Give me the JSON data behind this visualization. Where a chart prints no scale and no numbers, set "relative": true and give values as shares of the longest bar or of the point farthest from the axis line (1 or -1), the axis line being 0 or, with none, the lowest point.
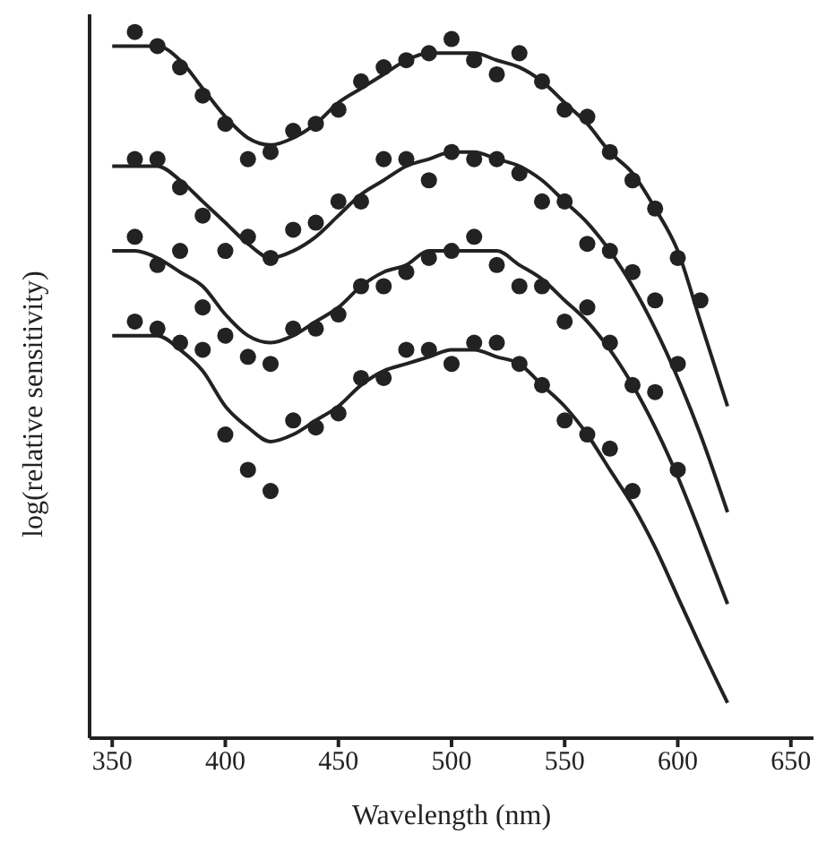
{
  "chart_data": {
    "type": "scatter",
    "xlabel": "Wavelength (nm)",
    "ylabel": "log(relative sensitivity)",
    "relative": true,
    "xlim": [
      340,
      660
    ],
    "xticks": [
      350,
      400,
      450,
      500,
      550,
      600,
      650
    ],
    "grid": false,
    "marker": "circle",
    "series": [
      {
        "color": "#222222",
        "x": [
          360,
          370,
          380,
          390,
          400,
          410,
          420,
          430,
          440,
          450,
          460,
          470,
          480,
          490,
          500,
          510,
          520,
          530,
          540,
          550,
          560,
          570,
          580,
          590,
          600,
          610
        ],
        "values": [
          1.0,
          0.98,
          0.95,
          0.91,
          0.87,
          0.82,
          0.83,
          0.86,
          0.87,
          0.89,
          0.93,
          0.95,
          0.96,
          0.97,
          0.99,
          0.96,
          0.94,
          0.97,
          0.93,
          0.89,
          0.88,
          0.83,
          0.79,
          0.75,
          0.68,
          0.62
        ]
      },
      {
        "color": "#222222",
        "x": [
          360,
          370,
          380,
          390,
          400,
          410,
          420,
          430,
          440,
          450,
          460,
          470,
          480,
          490,
          500,
          510,
          520,
          530,
          540,
          550,
          560,
          570,
          580,
          590,
          600
        ],
        "values": [
          0.82,
          0.82,
          0.78,
          0.74,
          0.69,
          0.71,
          0.68,
          0.72,
          0.73,
          0.76,
          0.76,
          0.82,
          0.82,
          0.79,
          0.83,
          0.82,
          0.82,
          0.8,
          0.76,
          0.76,
          0.7,
          0.69,
          0.66,
          0.62,
          0.53
        ]
      },
      {
        "color": "#222222",
        "x": [
          360,
          370,
          380,
          390,
          400,
          410,
          420,
          430,
          440,
          450,
          460,
          470,
          480,
          490,
          500,
          510,
          520,
          530,
          540,
          550,
          560,
          570,
          580,
          590,
          600
        ],
        "values": [
          0.71,
          0.67,
          0.69,
          0.61,
          0.57,
          0.54,
          0.53,
          0.58,
          0.58,
          0.6,
          0.64,
          0.64,
          0.66,
          0.68,
          0.69,
          0.71,
          0.67,
          0.64,
          0.64,
          0.59,
          0.61,
          0.56,
          0.5,
          0.49,
          0.38
        ]
      },
      {
        "color": "#222222",
        "x": [
          360,
          370,
          380,
          390,
          400,
          410,
          420,
          430,
          440,
          450,
          460,
          470,
          480,
          490,
          500,
          510,
          520,
          530,
          540,
          550,
          560,
          570,
          580
        ],
        "values": [
          0.59,
          0.58,
          0.56,
          0.55,
          0.43,
          0.38,
          0.35,
          0.45,
          0.44,
          0.46,
          0.51,
          0.51,
          0.55,
          0.55,
          0.53,
          0.56,
          0.56,
          0.53,
          0.5,
          0.45,
          0.43,
          0.41,
          0.35
        ]
      },
      {
        "type": "line",
        "marker": "none",
        "color": "#222222",
        "x": [
          350,
          360,
          370,
          380,
          390,
          400,
          410,
          420,
          430,
          440,
          450,
          460,
          470,
          480,
          490,
          500,
          510,
          520,
          530,
          540,
          550,
          560,
          570,
          580,
          590,
          600,
          610,
          622
        ],
        "values": [
          0.98,
          0.98,
          0.98,
          0.96,
          0.92,
          0.88,
          0.85,
          0.84,
          0.85,
          0.87,
          0.9,
          0.92,
          0.94,
          0.96,
          0.97,
          0.97,
          0.97,
          0.96,
          0.95,
          0.93,
          0.9,
          0.87,
          0.83,
          0.8,
          0.75,
          0.69,
          0.59,
          0.47
        ]
      },
      {
        "type": "line",
        "marker": "none",
        "color": "#222222",
        "x": [
          350,
          360,
          370,
          380,
          390,
          400,
          410,
          420,
          430,
          440,
          450,
          460,
          470,
          480,
          490,
          500,
          510,
          520,
          530,
          540,
          550,
          560,
          570,
          580,
          590,
          600,
          610,
          622
        ],
        "values": [
          0.81,
          0.81,
          0.81,
          0.79,
          0.76,
          0.73,
          0.7,
          0.68,
          0.69,
          0.71,
          0.74,
          0.77,
          0.79,
          0.81,
          0.82,
          0.83,
          0.83,
          0.82,
          0.81,
          0.79,
          0.76,
          0.73,
          0.69,
          0.64,
          0.58,
          0.51,
          0.43,
          0.32
        ]
      },
      {
        "type": "line",
        "marker": "none",
        "color": "#222222",
        "x": [
          350,
          360,
          370,
          380,
          390,
          400,
          410,
          420,
          430,
          440,
          450,
          460,
          470,
          480,
          490,
          500,
          510,
          520,
          530,
          540,
          550,
          560,
          570,
          580,
          590,
          600,
          610,
          622
        ],
        "values": [
          0.69,
          0.69,
          0.68,
          0.66,
          0.64,
          0.6,
          0.57,
          0.56,
          0.57,
          0.59,
          0.61,
          0.64,
          0.66,
          0.67,
          0.69,
          0.69,
          0.69,
          0.69,
          0.67,
          0.65,
          0.62,
          0.59,
          0.55,
          0.5,
          0.44,
          0.37,
          0.29,
          0.19
        ]
      },
      {
        "type": "line",
        "marker": "none",
        "color": "#222222",
        "x": [
          350,
          360,
          370,
          380,
          390,
          400,
          410,
          420,
          430,
          440,
          450,
          460,
          470,
          480,
          490,
          500,
          510,
          520,
          530,
          540,
          550,
          560,
          570,
          580,
          590,
          600,
          610,
          622
        ],
        "values": [
          0.57,
          0.57,
          0.57,
          0.55,
          0.52,
          0.47,
          0.44,
          0.42,
          0.43,
          0.45,
          0.47,
          0.5,
          0.52,
          0.53,
          0.54,
          0.55,
          0.55,
          0.54,
          0.53,
          0.5,
          0.47,
          0.43,
          0.38,
          0.33,
          0.27,
          0.2,
          0.13,
          0.05
        ]
      }
    ]
  }
}
